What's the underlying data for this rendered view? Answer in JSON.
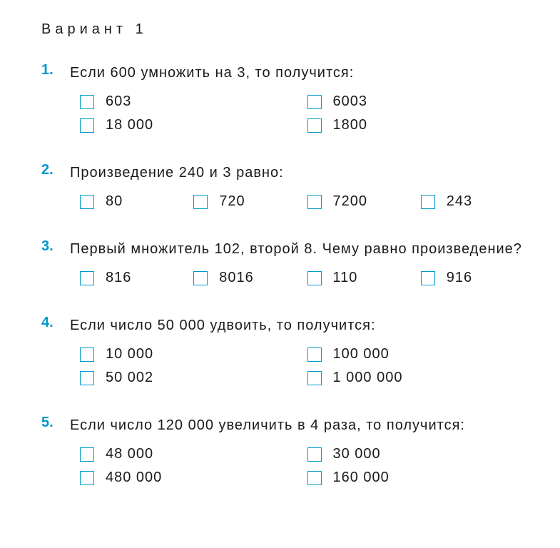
{
  "variant_title": "Вариант 1",
  "accent_color": "#0099cc",
  "text_color": "#1a1a1a",
  "background_color": "#ffffff",
  "questions": [
    {
      "number": "1.",
      "text": "Если 600 умножить на 3, то получится:",
      "layout": "two-col",
      "options": [
        "603",
        "6003",
        "18 000",
        "1800"
      ]
    },
    {
      "number": "2.",
      "text": "Произведение 240 и 3 равно:",
      "layout": "four-col",
      "options": [
        "80",
        "720",
        "7200",
        "243"
      ]
    },
    {
      "number": "3.",
      "text": "Первый множитель 102, второй 8. Чему равно произведение?",
      "layout": "four-col",
      "options": [
        "816",
        "8016",
        "110",
        "916"
      ]
    },
    {
      "number": "4.",
      "text": "Если число 50 000 удвоить, то получится:",
      "layout": "two-col",
      "options": [
        "10 000",
        "100 000",
        "50 002",
        "1 000 000"
      ]
    },
    {
      "number": "5.",
      "text": "Если число 120 000 увеличить в 4 раза, то получится:",
      "layout": "two-col",
      "options": [
        "48 000",
        "30 000",
        "480 000",
        "160 000"
      ]
    }
  ]
}
